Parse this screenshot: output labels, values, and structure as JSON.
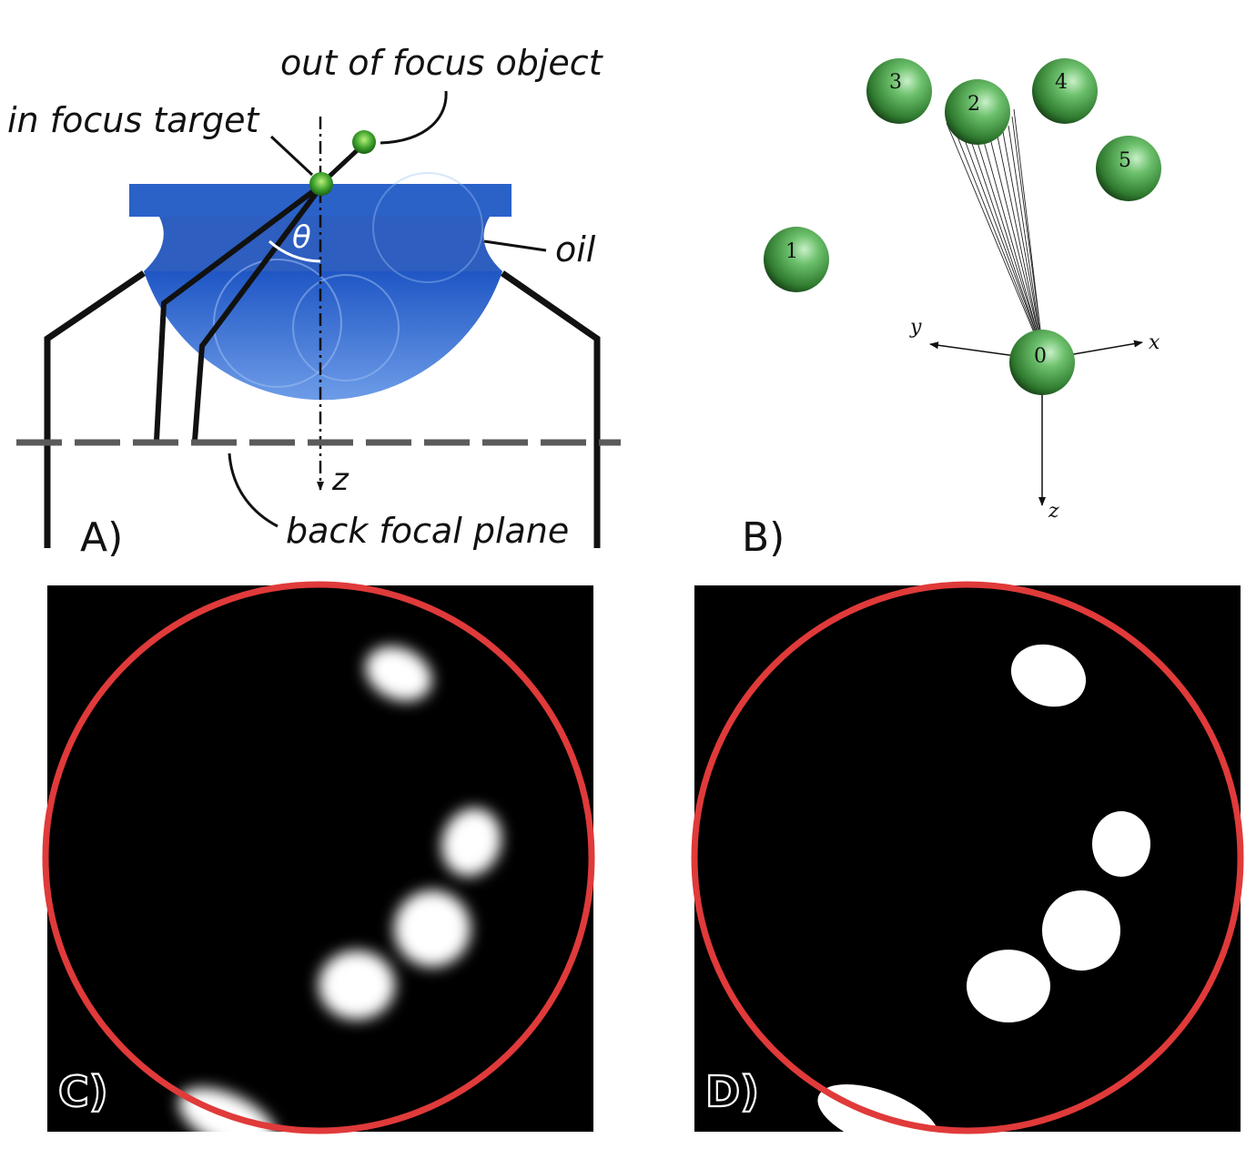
{
  "panel_a": {
    "label": "A)",
    "out_of_focus": "out of focus object",
    "in_focus": "in focus target",
    "oil": "oil",
    "theta": "θ",
    "z": "z",
    "back_focal_plane": "back focal plane"
  },
  "panel_b": {
    "label": "B)",
    "spheres": [
      "0",
      "1",
      "2",
      "3",
      "4",
      "5"
    ],
    "axis_x": "x",
    "axis_y": "y",
    "axis_z": "z"
  },
  "panel_c": {
    "label": "C)"
  },
  "panel_d": {
    "label": "D)"
  },
  "colors": {
    "circle": "#e03a3a",
    "lens": "#2a62c8",
    "sphere": "#55a855",
    "plane": "#5a5a5a"
  }
}
